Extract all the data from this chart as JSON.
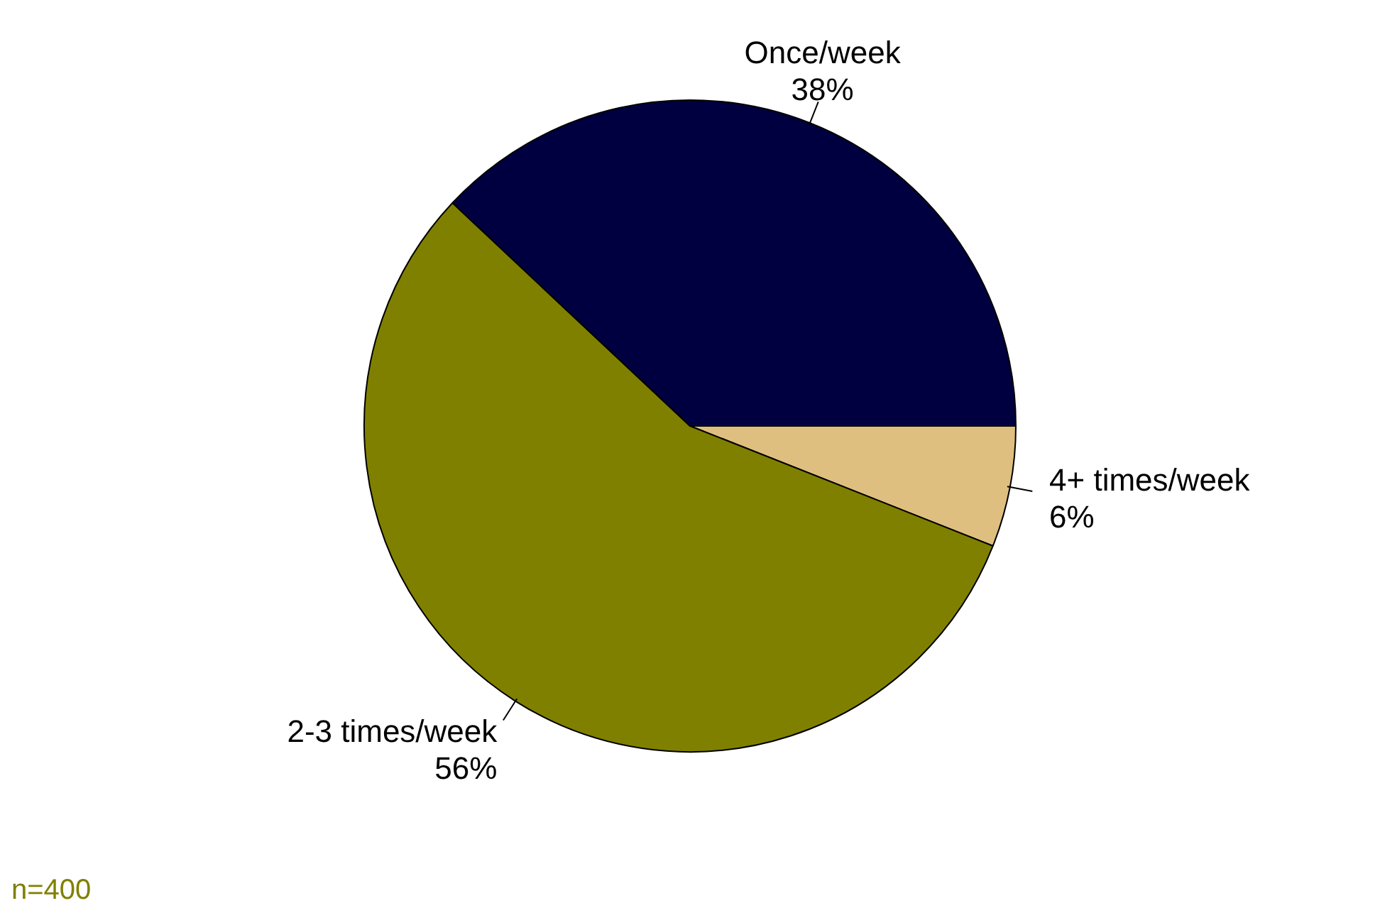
{
  "chart_data": {
    "type": "pie",
    "categories": [
      "4+ times/week",
      "2-3 times/week",
      "Once/week"
    ],
    "values": [
      6,
      56,
      38
    ],
    "value_labels": [
      "6%",
      "56%",
      "38%"
    ],
    "colors": [
      "#dfbf7f",
      "#808000",
      "#000040"
    ],
    "legend": false,
    "annotations": [
      "n=400"
    ]
  }
}
